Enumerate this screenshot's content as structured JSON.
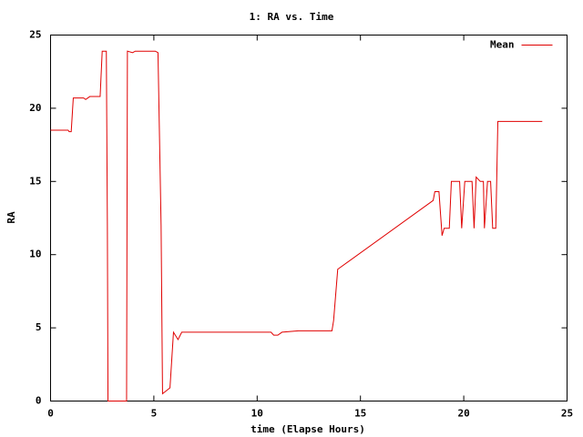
{
  "chart_data": {
    "type": "line",
    "title": "1: RA vs. Time",
    "x_label": "time (Elapse Hours)",
    "y_label": "RA",
    "x": [
      0,
      0.85,
      0.9,
      1.0,
      1.1,
      1.6,
      1.7,
      1.9,
      2.4,
      2.5,
      2.7,
      2.75,
      2.78,
      3.68,
      3.72,
      3.97,
      4.1,
      5.07,
      5.2,
      5.35,
      5.42,
      5.78,
      5.95,
      6.17,
      6.35,
      10.67,
      10.8,
      11.0,
      11.2,
      12.0,
      13.62,
      13.7,
      13.9,
      18.52,
      18.6,
      18.8,
      18.95,
      19.05,
      19.3,
      19.4,
      19.8,
      19.9,
      20.05,
      20.4,
      20.5,
      20.6,
      20.8,
      20.95,
      21.0,
      21.15,
      21.3,
      21.4,
      21.55,
      21.65,
      23.8
    ],
    "series": [
      {
        "name": "Mean",
        "color": "#e00000",
        "values": [
          18.5,
          18.5,
          18.4,
          18.4,
          20.7,
          20.7,
          20.6,
          20.8,
          20.8,
          23.9,
          23.9,
          12,
          0,
          0,
          23.9,
          23.8,
          23.9,
          23.9,
          23.8,
          12,
          0.5,
          0.9,
          4.7,
          4.2,
          4.7,
          4.7,
          4.5,
          4.5,
          4.7,
          4.8,
          4.8,
          5.5,
          9.0,
          13.7,
          14.3,
          14.3,
          11.3,
          11.8,
          11.8,
          15.0,
          15.0,
          11.8,
          15.0,
          15.0,
          11.8,
          15.3,
          15.0,
          15.0,
          11.8,
          15.0,
          15.0,
          11.8,
          11.8,
          19.1,
          19.1
        ]
      }
    ],
    "xlim": [
      0,
      25
    ],
    "xticks": [
      0,
      5,
      10,
      15,
      20,
      25
    ],
    "ylim": [
      0,
      25
    ],
    "yticks": [
      0,
      5,
      10,
      15,
      20,
      25
    ],
    "grid": false,
    "legend": "top-right"
  }
}
